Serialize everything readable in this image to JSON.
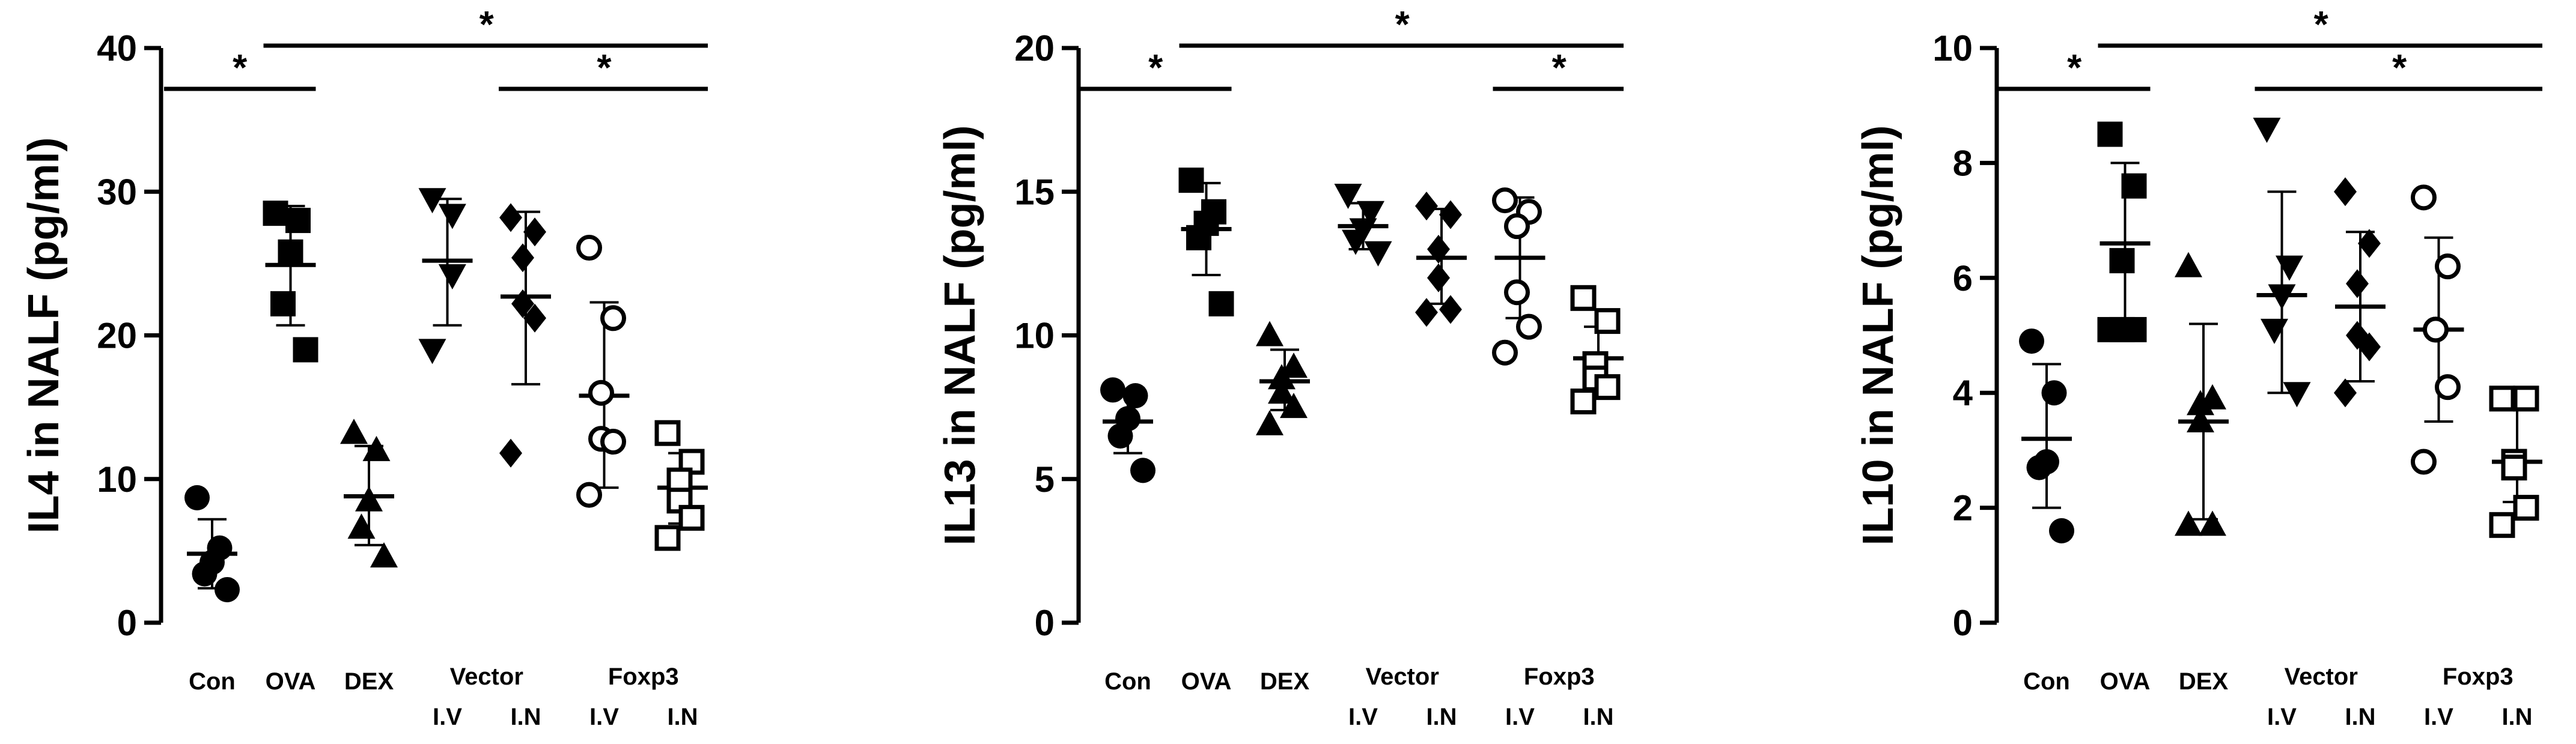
{
  "chart_data": [
    {
      "type": "scatter",
      "ylabel": "IL4 in NALF (pg/ml)",
      "ylim": [
        0,
        40
      ],
      "yticks": [
        "0",
        "10",
        "20",
        "30",
        "40"
      ],
      "categories": [
        {
          "label": "Con",
          "sublabel": ""
        },
        {
          "label": "OVA",
          "sublabel": ""
        },
        {
          "label": "DEX",
          "sublabel": ""
        },
        {
          "label": "",
          "sublabel": "I.V"
        },
        {
          "label": "",
          "sublabel": "I.N"
        },
        {
          "label": "",
          "sublabel": "I.V"
        },
        {
          "label": "",
          "sublabel": "I.N"
        }
      ],
      "group_labels": [
        {
          "label": "Vector",
          "span": [
            3,
            4
          ]
        },
        {
          "label": "Foxp3",
          "span": [
            5,
            6
          ]
        }
      ],
      "groups": [
        {
          "marker": "circle",
          "points": [
            8.7,
            5.2,
            4.2,
            3.4,
            2.3
          ],
          "mean": 4.8,
          "sd_low": 2.4,
          "sd_high": 7.2
        },
        {
          "marker": "square",
          "points": [
            28.5,
            28.0,
            25.8,
            22.2,
            19.0
          ],
          "mean": 24.9,
          "sd_low": 20.7,
          "sd_high": 29.0
        },
        {
          "marker": "triangle",
          "points": [
            13.2,
            12.0,
            8.5,
            6.6,
            4.6
          ],
          "mean": 8.8,
          "sd_low": 5.4,
          "sd_high": 12.3
        },
        {
          "marker": "triangle-down",
          "points": [
            29.5,
            28.4,
            24.2,
            19.0
          ],
          "mean": 25.2,
          "sd_low": 20.7,
          "sd_high": 29.5
        },
        {
          "marker": "diamond",
          "points": [
            28.2,
            27.2,
            25.4,
            22.2,
            21.2,
            11.8
          ],
          "mean": 22.7,
          "sd_low": 16.6,
          "sd_high": 28.6
        },
        {
          "marker": "circle-open",
          "points": [
            26.1,
            21.2,
            16.0,
            12.8,
            12.6,
            8.9
          ],
          "mean": 15.8,
          "sd_low": 9.4,
          "sd_high": 22.3
        },
        {
          "marker": "square-open",
          "points": [
            13.2,
            11.2,
            9.9,
            8.5,
            7.3,
            5.9
          ],
          "mean": 9.4,
          "sd_low": 6.9,
          "sd_high": 11.8
        }
      ],
      "significance": [
        {
          "from": 0,
          "to": 1,
          "level": 0,
          "label": "*"
        },
        {
          "from": 1,
          "to": 6,
          "level": 1,
          "label": "*"
        },
        {
          "from": 4,
          "to": 6,
          "level": 0,
          "label": "*"
        }
      ]
    },
    {
      "type": "scatter",
      "ylabel": "IL13 in NALF (pg/ml)",
      "ylim": [
        0,
        20
      ],
      "yticks": [
        "0",
        "5",
        "10",
        "15",
        "20"
      ],
      "categories": [
        {
          "label": "Con",
          "sublabel": ""
        },
        {
          "label": "OVA",
          "sublabel": ""
        },
        {
          "label": "DEX",
          "sublabel": ""
        },
        {
          "label": "",
          "sublabel": "I.V"
        },
        {
          "label": "",
          "sublabel": "I.N"
        },
        {
          "label": "",
          "sublabel": "I.V"
        },
        {
          "label": "",
          "sublabel": "I.N"
        }
      ],
      "group_labels": [
        {
          "label": "Vector",
          "span": [
            3,
            4
          ]
        },
        {
          "label": "Foxp3",
          "span": [
            5,
            6
          ]
        }
      ],
      "groups": [
        {
          "marker": "circle",
          "points": [
            8.1,
            7.9,
            7.1,
            6.5,
            5.3
          ],
          "mean": 7.0,
          "sd_low": 5.9,
          "sd_high": 8.1
        },
        {
          "marker": "square",
          "points": [
            15.4,
            14.3,
            13.9,
            13.4,
            11.1
          ],
          "mean": 13.7,
          "sd_low": 12.1,
          "sd_high": 15.3
        },
        {
          "marker": "triangle",
          "points": [
            10.0,
            8.9,
            8.5,
            8.0,
            7.5,
            6.9
          ],
          "mean": 8.4,
          "sd_low": 7.4,
          "sd_high": 9.5
        },
        {
          "marker": "triangle-down",
          "points": [
            14.9,
            14.3,
            13.7,
            13.3,
            12.9
          ],
          "mean": 13.8,
          "sd_low": 13.0,
          "sd_high": 14.6
        },
        {
          "marker": "diamond",
          "points": [
            14.5,
            14.2,
            13.0,
            12.0,
            10.9,
            10.8
          ],
          "mean": 12.7,
          "sd_low": 11.1,
          "sd_high": 14.4
        },
        {
          "marker": "circle-open",
          "points": [
            14.7,
            14.3,
            13.8,
            11.5,
            10.3,
            9.4
          ],
          "mean": 12.7,
          "sd_low": 10.6,
          "sd_high": 14.8
        },
        {
          "marker": "square-open",
          "points": [
            11.3,
            10.5,
            9.0,
            8.5,
            8.2,
            7.7
          ],
          "mean": 9.2,
          "sd_low": 8.2,
          "sd_high": 10.3
        }
      ],
      "significance": [
        {
          "from": 0,
          "to": 1,
          "level": 0,
          "label": "*"
        },
        {
          "from": 1,
          "to": 6,
          "level": 1,
          "label": "*"
        },
        {
          "from": 5,
          "to": 6,
          "level": 0,
          "label": "*"
        }
      ]
    },
    {
      "type": "scatter",
      "ylabel": "IL10 in NALF (pg/ml)",
      "ylim": [
        0,
        10
      ],
      "yticks": [
        "0",
        "2",
        "4",
        "6",
        "8",
        "10"
      ],
      "categories": [
        {
          "label": "Con",
          "sublabel": ""
        },
        {
          "label": "OVA",
          "sublabel": ""
        },
        {
          "label": "DEX",
          "sublabel": ""
        },
        {
          "label": "",
          "sublabel": "I.V"
        },
        {
          "label": "",
          "sublabel": "I.N"
        },
        {
          "label": "",
          "sublabel": "I.V"
        },
        {
          "label": "",
          "sublabel": "I.N"
        }
      ],
      "group_labels": [
        {
          "label": "Vector",
          "span": [
            3,
            4
          ]
        },
        {
          "label": "Foxp3",
          "span": [
            5,
            6
          ]
        }
      ],
      "groups": [
        {
          "marker": "circle",
          "points": [
            4.9,
            4.0,
            2.8,
            2.7,
            1.6
          ],
          "mean": 3.2,
          "sd_low": 2.0,
          "sd_high": 4.5
        },
        {
          "marker": "square",
          "points": [
            8.5,
            7.6,
            6.3,
            5.1,
            5.1,
            5.1
          ],
          "mean": 6.6,
          "sd_low": 5.2,
          "sd_high": 8.0
        },
        {
          "marker": "triangle",
          "points": [
            6.2,
            3.9,
            3.8,
            3.5,
            1.7,
            1.7
          ],
          "mean": 3.5,
          "sd_low": 1.8,
          "sd_high": 5.2
        },
        {
          "marker": "triangle-down",
          "points": [
            8.6,
            6.2,
            5.7,
            5.1,
            4.0
          ],
          "mean": 5.7,
          "sd_low": 4.0,
          "sd_high": 7.5
        },
        {
          "marker": "diamond",
          "points": [
            7.5,
            6.6,
            5.9,
            5.0,
            4.8,
            4.0
          ],
          "mean": 5.5,
          "sd_low": 4.2,
          "sd_high": 6.8
        },
        {
          "marker": "circle-open",
          "points": [
            7.4,
            6.2,
            5.1,
            5.1,
            4.1,
            2.8
          ],
          "mean": 5.1,
          "sd_low": 3.5,
          "sd_high": 6.7
        },
        {
          "marker": "square-open",
          "points": [
            3.9,
            3.9,
            2.8,
            2.7,
            2.0,
            1.7
          ],
          "mean": 2.8,
          "sd_low": 2.1,
          "sd_high": 3.9
        }
      ],
      "significance": [
        {
          "from": 0,
          "to": 1,
          "level": 0,
          "label": "*"
        },
        {
          "from": 1,
          "to": 6,
          "level": 1,
          "label": "*"
        },
        {
          "from": 3,
          "to": 6,
          "level": 0,
          "label": "*"
        }
      ]
    }
  ]
}
